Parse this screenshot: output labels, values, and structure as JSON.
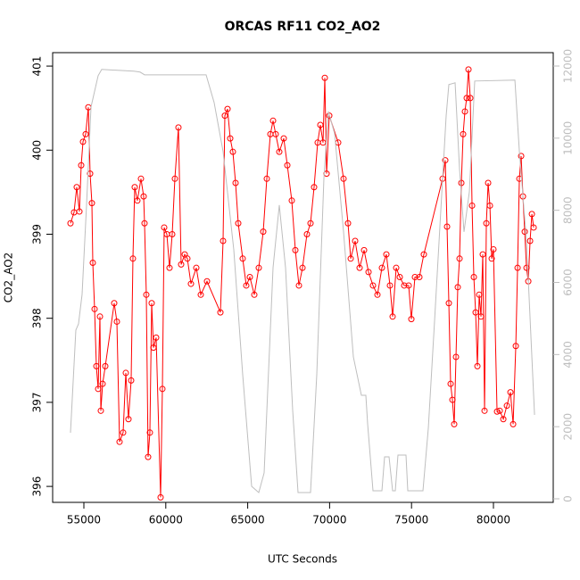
{
  "chart_data": {
    "type": "line",
    "title": "ORCAS RF11 CO2_AO2",
    "x_label": "UTC Seconds",
    "y_label": "CO2_AO2",
    "xlim": [
      53094,
      83650
    ],
    "xticks": [
      55000,
      60000,
      65000,
      70000,
      75000,
      80000
    ],
    "ylim": [
      395.81,
      401.16
    ],
    "yticks": [
      396,
      397,
      398,
      399,
      400,
      401
    ],
    "y2lim": [
      -99,
      12371
    ],
    "y2ticks": [
      0,
      2000,
      4000,
      6000,
      8000,
      10000,
      12000
    ],
    "y2_color": "#bebebe",
    "series": [
      {
        "color": "#ff0000",
        "markers": true,
        "x": [
          54183,
          54400,
          54564,
          54728,
          54837,
          54946,
          55109,
          55272,
          55381,
          55490,
          55545,
          55654,
          55763,
          55872,
          55981,
          56035,
          56144,
          56307,
          56852,
          57015,
          57178,
          57396,
          57560,
          57723,
          57886,
          57995,
          58104,
          58267,
          58485,
          58649,
          58703,
          58812,
          58921,
          59030,
          59139,
          59248,
          59412,
          59684,
          59793,
          59902,
          60066,
          60229,
          60392,
          60555,
          60773,
          60937,
          61155,
          61318,
          61536,
          61863,
          62135,
          62516,
          63334,
          63497,
          63606,
          63770,
          63933,
          64096,
          64260,
          64423,
          64695,
          64913,
          65131,
          65404,
          65676,
          65948,
          66166,
          66384,
          66548,
          66711,
          66929,
          67201,
          67419,
          67691,
          67909,
          68127,
          68345,
          68617,
          68835,
          69053,
          69271,
          69434,
          69598,
          69707,
          69816,
          69979,
          70524,
          70851,
          71123,
          71287,
          71559,
          71831,
          72104,
          72376,
          72648,
          72920,
          73193,
          73465,
          73683,
          73846,
          74064,
          74282,
          74554,
          74827,
          74990,
          75208,
          75480,
          75752,
          76896,
          77060,
          77169,
          77278,
          77387,
          77496,
          77605,
          77714,
          77823,
          77932,
          78041,
          78150,
          78259,
          78368,
          78477,
          78586,
          78695,
          78804,
          78913,
          79022,
          79131,
          79240,
          79349,
          79458,
          79567,
          79676,
          79785,
          79894,
          80000,
          80221,
          80385,
          80603,
          80821,
          81039,
          81202,
          81365,
          81474,
          81583,
          81692,
          81801,
          81910,
          82019,
          82128,
          82237,
          82346,
          82455
        ],
        "values": [
          399.13,
          399.26,
          399.56,
          399.27,
          399.82,
          400.1,
          400.19,
          400.51,
          399.72,
          399.37,
          398.66,
          398.11,
          397.43,
          397.16,
          398.02,
          396.9,
          397.22,
          397.43,
          398.18,
          397.96,
          396.53,
          396.64,
          397.35,
          396.8,
          397.26,
          398.71,
          399.56,
          399.4,
          399.66,
          399.45,
          399.13,
          398.28,
          396.35,
          396.64,
          398.18,
          397.65,
          397.77,
          395.87,
          397.16,
          399.08,
          399.0,
          398.6,
          399.0,
          399.66,
          400.27,
          398.64,
          398.76,
          398.71,
          398.41,
          398.6,
          398.28,
          398.44,
          398.07,
          398.92,
          400.41,
          400.49,
          400.14,
          399.98,
          399.61,
          399.13,
          398.71,
          398.39,
          398.49,
          398.28,
          398.6,
          399.03,
          399.66,
          400.19,
          400.35,
          400.19,
          399.98,
          400.14,
          399.82,
          399.4,
          398.81,
          398.39,
          398.6,
          399.0,
          399.13,
          399.56,
          400.09,
          400.3,
          400.09,
          400.86,
          399.72,
          400.41,
          400.09,
          399.66,
          399.13,
          398.71,
          398.92,
          398.6,
          398.81,
          398.55,
          398.39,
          398.28,
          398.6,
          398.76,
          398.39,
          398.02,
          398.6,
          398.49,
          398.39,
          398.39,
          397.99,
          398.49,
          398.49,
          398.76,
          399.66,
          399.88,
          399.09,
          398.18,
          397.22,
          397.03,
          396.74,
          397.54,
          398.37,
          398.71,
          399.61,
          400.19,
          400.46,
          400.62,
          400.96,
          400.62,
          399.34,
          398.49,
          398.07,
          397.43,
          398.28,
          398.02,
          398.76,
          396.9,
          399.13,
          399.61,
          399.34,
          398.71,
          398.82,
          396.89,
          396.9,
          396.8,
          396.96,
          397.12,
          396.74,
          397.67,
          398.6,
          399.66,
          399.93,
          399.45,
          399.03,
          398.6,
          398.44,
          398.92,
          399.24,
          399.08
        ]
      },
      {
        "color": "#bebebe",
        "axis": "y2",
        "x": [
          54183,
          54510,
          54673,
          54891,
          55163,
          55436,
          55872,
          56090,
          58050,
          58431,
          58703,
          62461,
          62951,
          63497,
          64151,
          64695,
          65240,
          65676,
          66003,
          66548,
          66929,
          67310,
          67746,
          68073,
          68835,
          69216,
          69652,
          69924,
          70306,
          70851,
          71450,
          71940,
          72212,
          72321,
          72648,
          73193,
          73356,
          73628,
          73846,
          74010,
          74173,
          74663,
          74772,
          75698,
          76025,
          76406,
          77114,
          77278,
          77660,
          77932,
          78204,
          78531,
          78858,
          81311,
          81583,
          82019,
          82509
        ],
        "values": [
          1832,
          4678,
          4851,
          5668,
          8144,
          10866,
          11733,
          11906,
          11856,
          11832,
          11757,
          11757,
          10990,
          9629,
          6906,
          3441,
          347,
          173,
          718,
          6411,
          8144,
          6411,
          2450,
          173,
          173,
          3441,
          8886,
          10743,
          10124,
          7401,
          3936,
          2871,
          2871,
          2079,
          223,
          223,
          1163,
          1163,
          223,
          223,
          1213,
          1213,
          223,
          223,
          1955,
          4926,
          10619,
          11485,
          11535,
          9134,
          7401,
          8515,
          11584,
          11609,
          9629,
          7153,
          2327
        ]
      }
    ]
  }
}
